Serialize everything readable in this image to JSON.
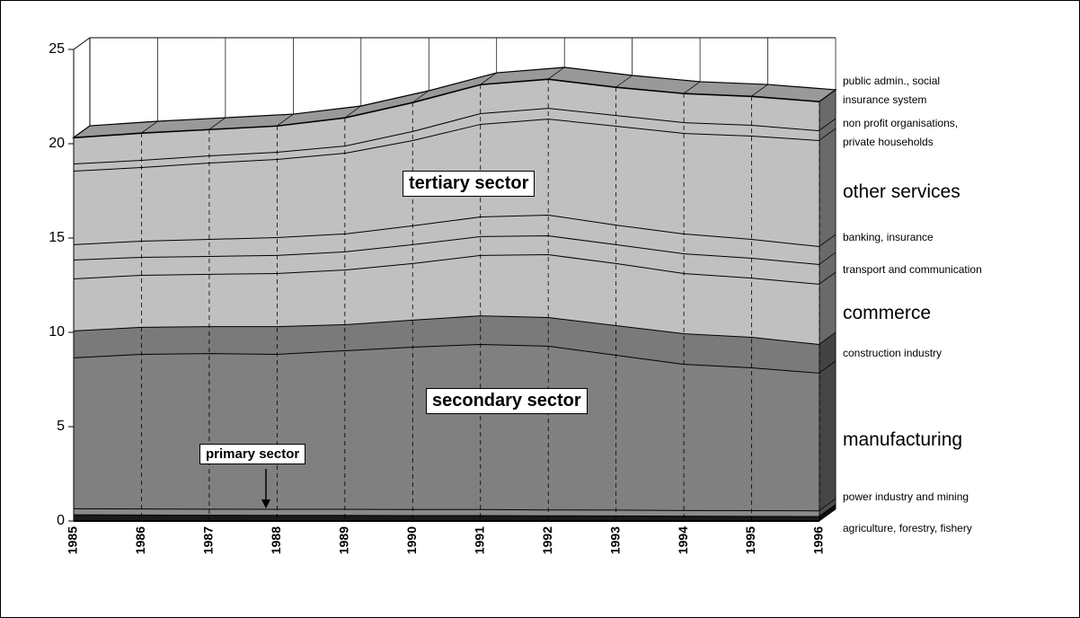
{
  "chart_data": {
    "type": "stacked-area-3d",
    "categories": [
      "1985",
      "1986",
      "1987",
      "1988",
      "1989",
      "1990",
      "1991",
      "1992",
      "1993",
      "1994",
      "1995",
      "1996"
    ],
    "ylim": [
      0,
      25
    ],
    "yticks": [
      0,
      5,
      10,
      15,
      20,
      25
    ],
    "grid": true,
    "series": [
      {
        "name": "agriculture, forestry, fishery",
        "color": "#1a1a1a",
        "values": [
          0.35,
          0.34,
          0.33,
          0.32,
          0.32,
          0.31,
          0.31,
          0.3,
          0.29,
          0.28,
          0.27,
          0.26
        ]
      },
      {
        "name": "power industry and mining",
        "color": "#8a8a8a",
        "values": [
          0.32,
          0.32,
          0.32,
          0.32,
          0.32,
          0.32,
          0.32,
          0.31,
          0.31,
          0.3,
          0.3,
          0.3
        ]
      },
      {
        "name": "manufacturing",
        "color": "#808080",
        "values": [
          8.0,
          8.2,
          8.25,
          8.22,
          8.41,
          8.61,
          8.75,
          8.68,
          8.21,
          7.75,
          7.57,
          7.3
        ]
      },
      {
        "name": "construction industry",
        "color": "#7a7a7a",
        "values": [
          1.43,
          1.43,
          1.43,
          1.47,
          1.38,
          1.43,
          1.52,
          1.52,
          1.57,
          1.62,
          1.62,
          1.52
        ]
      },
      {
        "name": "commerce",
        "color": "#c0c0c0",
        "values": [
          2.76,
          2.76,
          2.77,
          2.81,
          2.9,
          3.0,
          3.2,
          3.33,
          3.29,
          3.19,
          3.14,
          3.19
        ]
      },
      {
        "name": "transport and communication",
        "color": "#c0c0c0",
        "values": [
          1.0,
          0.95,
          0.95,
          0.96,
          0.96,
          1.0,
          1.0,
          1.0,
          1.0,
          1.05,
          1.05,
          1.05
        ]
      },
      {
        "name": "banking, insurance",
        "color": "#c0c0c0",
        "values": [
          0.81,
          0.86,
          0.9,
          0.95,
          0.95,
          1.0,
          1.04,
          1.1,
          1.04,
          1.05,
          1.0,
          0.95
        ]
      },
      {
        "name": "other services",
        "color": "#c0c0c0",
        "values": [
          3.9,
          3.9,
          4.05,
          4.14,
          4.28,
          4.52,
          4.91,
          5.09,
          5.24,
          5.33,
          5.48,
          5.62
        ]
      },
      {
        "name": "non profit organisations, private households",
        "color": "#c0c0c0",
        "values": [
          0.38,
          0.38,
          0.38,
          0.38,
          0.38,
          0.48,
          0.57,
          0.57,
          0.57,
          0.57,
          0.57,
          0.52
        ]
      },
      {
        "name": "public admin., social insurance system",
        "color": "#c0c0c0",
        "values": [
          1.38,
          1.43,
          1.38,
          1.38,
          1.48,
          1.52,
          1.52,
          1.53,
          1.48,
          1.53,
          1.52,
          1.53
        ]
      }
    ],
    "annotations": [
      {
        "label": "tertiary sector"
      },
      {
        "label": "secondary sector"
      },
      {
        "label": "primary sector"
      }
    ]
  }
}
